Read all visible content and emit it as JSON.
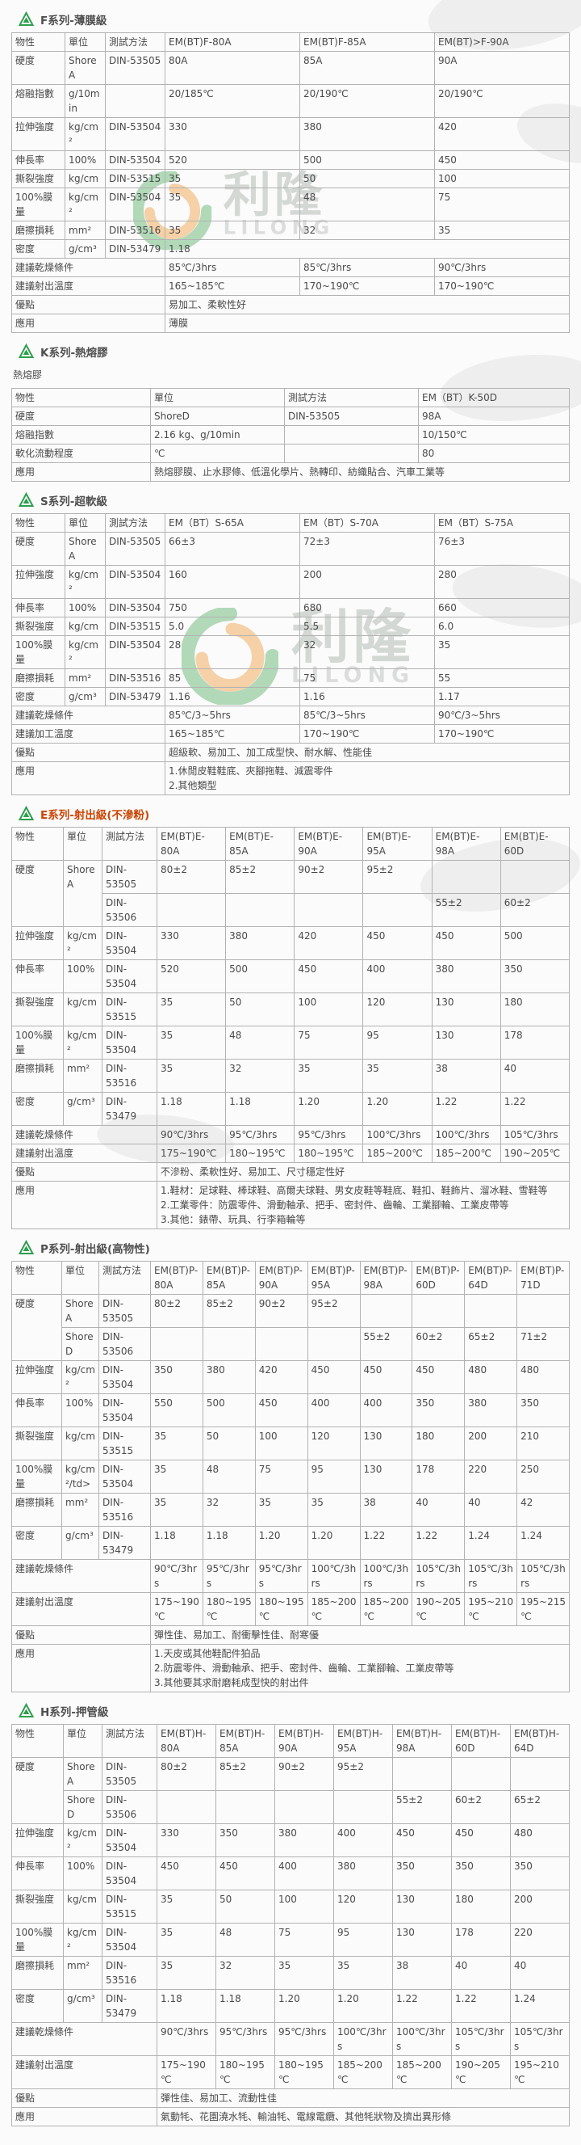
{
  "brand": {
    "watermark_cjk": "利隆",
    "watermark_latin": "LILONG",
    "green": "#2f9e4e",
    "orange": "#f08c1e",
    "e_series_title_color": "#cc4400"
  },
  "sections": [
    {
      "id": "f-series",
      "title": "F系列-薄膜級",
      "columns": [
        "物性",
        "單位",
        "測試方法",
        "EM(BT)F-80A",
        "EM(BT)F-85A",
        "EM(BT)>F-90A"
      ],
      "rows": [
        [
          "硬度",
          "ShoreA",
          "DIN-53505",
          "80A",
          "85A",
          "90A"
        ],
        [
          "熔融指數",
          "g/10min",
          "",
          "20/185℃",
          "20/190℃",
          "20/190℃"
        ],
        [
          "拉伸強度",
          "kg/cm²",
          "DIN-53504",
          "330",
          "380",
          "420"
        ],
        [
          "伸長率",
          "100%",
          "DIN-53504",
          "520",
          "500",
          "450"
        ],
        [
          "撕裂強度",
          "kg/cm",
          "DIN-53515",
          "35",
          "50",
          "100"
        ],
        [
          "100%膜量",
          "kg/cm²",
          "DIN-53504",
          "35",
          "48",
          "75"
        ],
        [
          "磨擦損耗",
          "mm²",
          "DIN-53516",
          "35",
          "32",
          "35"
        ],
        [
          "密度",
          "g/cm³",
          "DIN-53479",
          {
            "t": "1.18",
            "c": 3
          }
        ],
        [
          {
            "t": "建議乾燥條件",
            "c": 3
          },
          "85℃/3hrs",
          "85℃/3hrs",
          "90℃/3hrs"
        ],
        [
          {
            "t": "建議射出溫度",
            "c": 3
          },
          "165~185℃",
          "170~190℃",
          "170~190℃"
        ],
        [
          {
            "t": "優點",
            "c": 3
          },
          {
            "t": "易加工、柔軟性好",
            "c": 3
          }
        ],
        [
          {
            "t": "應用",
            "c": 3
          },
          {
            "t": "薄膜",
            "c": 3
          }
        ]
      ]
    },
    {
      "id": "k-series",
      "title": "K系列-熱熔膠",
      "subtitle": "熱熔膠",
      "columns": [
        "物性",
        "單位",
        "測試方法",
        "EM（BT）K-50D"
      ],
      "rows": [
        [
          "硬度",
          "ShoreD",
          "DIN-53505",
          "98A"
        ],
        [
          "熔融指數",
          "2.16 kg、g/10min",
          "",
          "10/150℃"
        ],
        [
          "軟化流動程度",
          "℃",
          "",
          "80"
        ],
        [
          "應用",
          {
            "t": "熱熔膠膜、止水膠條、低溫化學片、熱轉印、紡織貼合、汽車工業等",
            "c": 3
          }
        ]
      ]
    },
    {
      "id": "s-series",
      "title": "S系列-超軟級",
      "columns": [
        "物性",
        "單位",
        "測試方法",
        "EM（BT）S-65A",
        "EM（BT）S-70A",
        "EM（BT）S-75A"
      ],
      "rows": [
        [
          "硬度",
          "ShoreA",
          "DIN-53505",
          "66±3",
          "72±3",
          "76±3"
        ],
        [
          "拉伸強度",
          "kg/cm²",
          "DIN-53504",
          "160",
          "200",
          "280"
        ],
        [
          "伸長率",
          "100%",
          "DIN-53504",
          "750",
          "680",
          "660"
        ],
        [
          "撕裂強度",
          "kg/cm",
          "DIN-53515",
          "5.0",
          "5.5",
          "6.0"
        ],
        [
          "100%膜量",
          "kg/cm²",
          "DIN-53504",
          "28",
          "32",
          "35"
        ],
        [
          "磨擦損耗",
          "mm²",
          "DIN-53516",
          "85",
          "75",
          "55"
        ],
        [
          "密度",
          "g/cm³",
          "DIN-53479",
          "1.16",
          "1.16",
          "1.17"
        ],
        [
          {
            "t": "建議乾燥條件",
            "c": 3
          },
          "85℃/3~5hrs",
          "85℃/3~5hrs",
          "90℃/3~5hrs"
        ],
        [
          {
            "t": "建議加工溫度",
            "c": 3
          },
          "165~185℃",
          "170~190℃",
          "170~190℃"
        ],
        [
          {
            "t": "優點",
            "c": 3
          },
          {
            "t": "超級軟、易加工、加工成型快、耐水解、性能佳",
            "c": 3
          }
        ],
        [
          {
            "t": "應用",
            "c": 3
          },
          {
            "t": "1.休閒皮鞋鞋底、夾腳拖鞋、減震零件\n2.其他類型",
            "c": 3
          }
        ]
      ]
    },
    {
      "id": "e-series",
      "title": "E系列-射出級(不滲粉)",
      "title_color": "#cc4400",
      "columns": [
        "物性",
        "單位",
        "測試方法",
        "EM(BT)E-80A",
        "EM(BT)E-85A",
        "EM(BT)E-90A",
        "EM(BT)E-95A",
        "EM(BT)E-98A",
        "EM(BT)E-60D"
      ],
      "rows": [
        [
          {
            "t": "硬度",
            "r": 2
          },
          {
            "t": "ShoreA",
            "r": 2
          },
          "DIN-53505",
          "80±2",
          "85±2",
          "90±2",
          "95±2",
          "",
          ""
        ],
        [
          "DIN-53506",
          "",
          "",
          "",
          "",
          "55±2",
          "60±2"
        ],
        [
          "拉伸強度",
          "kg/cm²",
          "DIN-53504",
          "330",
          "380",
          "420",
          "450",
          "450",
          "500"
        ],
        [
          "伸長率",
          "100%",
          "DIN-53504",
          "520",
          "500",
          "450",
          "400",
          "380",
          "350"
        ],
        [
          "撕裂強度",
          "kg/cm",
          "DIN-53515",
          "35",
          "50",
          "100",
          "120",
          "130",
          "180"
        ],
        [
          "100%膜量",
          "kg/cm²",
          "DIN-53504",
          "35",
          "48",
          "75",
          "95",
          "130",
          "178"
        ],
        [
          "磨擦損耗",
          "mm²",
          "DIN-53516",
          "35",
          "32",
          "35",
          "35",
          "38",
          "40"
        ],
        [
          "密度",
          "g/cm³",
          "DIN-53479",
          "1.18",
          "1.18",
          "1.20",
          "1.20",
          "1.22",
          "1.22"
        ],
        [
          {
            "t": "建議乾燥條件",
            "c": 3
          },
          "90℃/3hrs",
          "95℃/3hrs",
          "95℃/3hrs",
          "100℃/3hrs",
          "100℃/3hrs",
          "105℃/3hrs"
        ],
        [
          {
            "t": "建議射出溫度",
            "c": 3
          },
          "175~190℃",
          "180~195℃",
          "180~195℃",
          "185~200℃",
          "185~200℃",
          "190~205℃"
        ],
        [
          {
            "t": "優點",
            "c": 3
          },
          {
            "t": "不滲粉、柔軟性好、易加工、尺寸穩定性好",
            "c": 6
          }
        ],
        [
          {
            "t": "應用",
            "c": 3
          },
          {
            "t": "1.鞋材：足球鞋、棒球鞋、高爾夫球鞋、男女皮鞋等鞋底、鞋扣、鞋飾片、溜冰鞋、雪鞋等\n2.工業零件：防震零件、滑動軸承、把手、密封件、齒輪、工業腳輪、工業皮帶等\n3.其他：錶帶、玩具、行李箱輪等",
            "c": 6
          }
        ]
      ]
    },
    {
      "id": "p-series",
      "title": "P系列-射出級(高物性)",
      "columns": [
        "物性",
        "單位",
        "測試方法",
        "EM(BT)P-80A",
        "EM(BT)P-85A",
        "EM(BT)P-90A",
        "EM(BT)P-95A",
        "EM(BT)P-98A",
        "EM(BT)P-60D",
        "EM(BT)P-64D",
        "EM(BT)P-71D"
      ],
      "rows": [
        [
          {
            "t": "硬度",
            "r": 2
          },
          "ShoreA",
          "DIN-53505",
          "80±2",
          "85±2",
          "90±2",
          "95±2",
          "",
          "",
          "",
          ""
        ],
        [
          "ShoreD",
          "DIN-53506",
          "",
          "",
          "",
          "",
          "55±2",
          "60±2",
          "65±2",
          "71±2"
        ],
        [
          "拉伸強度",
          "kg/cm²",
          "DIN-53504",
          "350",
          "380",
          "420",
          "450",
          "450",
          "450",
          "480",
          "480"
        ],
        [
          "伸長率",
          "100%",
          "DIN-53504",
          "550",
          "500",
          "450",
          "400",
          "400",
          "350",
          "380",
          "350"
        ],
        [
          "撕裂強度",
          "kg/cm",
          "DIN-53515",
          "35",
          "50",
          "100",
          "120",
          "130",
          "180",
          "200",
          "210"
        ],
        [
          "100%膜量",
          "kg/cm²/td>",
          "DIN-53504",
          "35",
          "48",
          "75",
          "95",
          "130",
          "178",
          "220",
          "250"
        ],
        [
          "磨擦損耗",
          "mm²",
          "DIN-53516",
          "35",
          "32",
          "35",
          "35",
          "38",
          "40",
          "40",
          "42"
        ],
        [
          "密度",
          "g/cm³",
          "DIN-53479",
          "1.18",
          "1.18",
          "1.20",
          "1.20",
          "1.22",
          "1.22",
          "1.24",
          "1.24"
        ],
        [
          {
            "t": "建議乾燥條件",
            "c": 3
          },
          "90℃/3hrs",
          "95℃/3hrs",
          "95℃/3hrs",
          "100℃/3hrs",
          "100℃/3hrs",
          "105℃/3hrs",
          "105℃/3hrs",
          "105℃/3hrs"
        ],
        [
          {
            "t": "建議射出溫度",
            "c": 3
          },
          "175~190℃",
          "180~195℃",
          "180~195℃",
          "185~200℃",
          "185~200℃",
          "190~205℃",
          "195~210℃",
          "195~215℃"
        ],
        [
          {
            "t": "優點",
            "c": 3
          },
          {
            "t": "彈性佳、易加工、耐衝擊性佳、耐寒優",
            "c": 8
          }
        ],
        [
          {
            "t": "應用",
            "c": 3
          },
          {
            "t": "1.天皮或其他鞋配件狛品\n2.防震零件、滑動軸承、把手、密封件、齒輪、工業腳輪、工業皮帶等\n3.其他要其求耐磨耗成型快的射出件",
            "c": 8
          }
        ]
      ]
    },
    {
      "id": "h-series",
      "title": "H系列-押管級",
      "columns": [
        "物性",
        "單位",
        "測試方法",
        "EM(BT)H-80A",
        "EM(BT)H-85A",
        "EM(BT)H-90A",
        "EM(BT)H-95A",
        "EM(BT)H-98A",
        "EM(BT)H-60D",
        "EM(BT)H-64D"
      ],
      "rows": [
        [
          {
            "t": "硬度",
            "r": 2
          },
          "ShoreA",
          "DIN-53505",
          "80±2",
          "85±2",
          "90±2",
          "95±2",
          "",
          "",
          ""
        ],
        [
          "ShoreD",
          "DIN-53506",
          "",
          "",
          "",
          "",
          "55±2",
          "60±2",
          "65±2"
        ],
        [
          "拉伸強度",
          "kg/cm²",
          "DIN-53504",
          "330",
          "350",
          "380",
          "400",
          "450",
          "450",
          "480"
        ],
        [
          "伸長率",
          "100%",
          "DIN-53504",
          "450",
          "450",
          "400",
          "380",
          "350",
          "350",
          "350"
        ],
        [
          "撕裂強度",
          "kg/cm",
          "DIN-53515",
          "35",
          "50",
          "100",
          "120",
          "130",
          "180",
          "200"
        ],
        [
          "100%膜量",
          "kg/cm²",
          "DIN-53504",
          "35",
          "48",
          "75",
          "95",
          "130",
          "178",
          "220"
        ],
        [
          "磨擦損耗",
          "mm²",
          "DIN-53516",
          "35",
          "32",
          "35",
          "35",
          "38",
          "40",
          "40"
        ],
        [
          "密度",
          "g/cm³",
          "DIN-53479",
          "1.18",
          "1.18",
          "1.20",
          "1.20",
          "1.22",
          "1.22",
          "1.24"
        ],
        [
          {
            "t": "建議乾燥條件",
            "c": 3
          },
          "90℃/3hrs",
          "95℃/3hrs",
          "95℃/3hrs",
          "100℃/3hrs",
          "100℃/3hrs",
          "105℃/3hrs",
          "105℃/3hrs"
        ],
        [
          {
            "t": "建議射出溫度",
            "c": 3
          },
          "175~190℃",
          "180~195℃",
          "180~195℃",
          "185~200℃",
          "185~200℃",
          "190~205℃",
          "195~210℃"
        ],
        [
          {
            "t": "優點",
            "c": 3
          },
          {
            "t": "彈性佳、易加工、流動性佳",
            "c": 7
          }
        ],
        [
          {
            "t": "應用",
            "c": 3
          },
          {
            "t": "氣動牦、花園澆水牦、輸油牦、電線電纜、其他牦狀物及擠出異形條",
            "c": 7
          }
        ]
      ]
    }
  ]
}
